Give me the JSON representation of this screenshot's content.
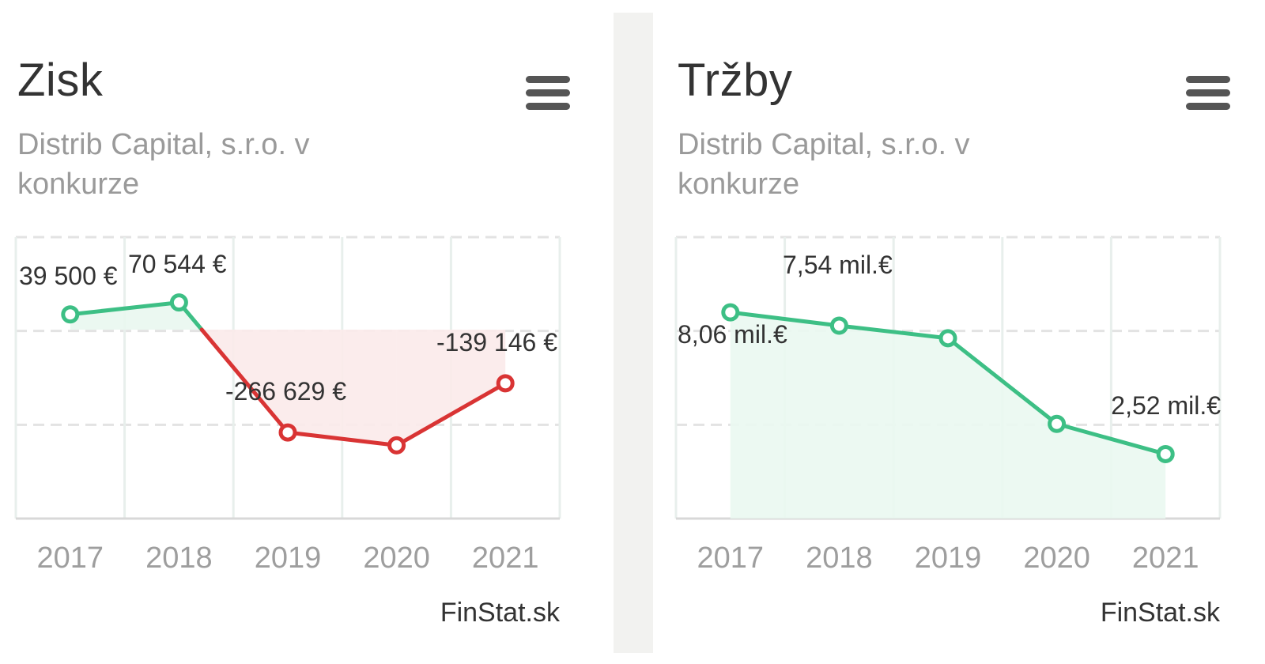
{
  "colors": {
    "positive": "#3dbf85",
    "negative": "#d93434",
    "grid": "#e3e3e3"
  },
  "charts": [
    {
      "title": "Zisk",
      "subtitle": "Distrib Capital, s.r.o. v konkurze",
      "menu_icon": "hamburger-menu-icon",
      "credit": "FinStat.sk"
    },
    {
      "title": "Tržby",
      "subtitle": "Distrib Capital, s.r.o. v konkurze",
      "menu_icon": "hamburger-menu-icon",
      "credit": "FinStat.sk"
    }
  ],
  "chart_data": [
    {
      "type": "area",
      "title": "Zisk",
      "subtitle": "Distrib Capital, s.r.o. v konkurze",
      "categories": [
        "2017",
        "2018",
        "2019",
        "2020",
        "2021"
      ],
      "series": [
        {
          "values": [
            39500,
            70544,
            -266629,
            -300000,
            -139146
          ],
          "data_labels": [
            "39 500 €",
            "70 544 €",
            "-266 629 €",
            "",
            "-139 146 €"
          ]
        }
      ],
      "ylim": [
        -490000,
        240000
      ],
      "grid": true,
      "threshold": 0
    },
    {
      "type": "area",
      "title": "Tržby",
      "subtitle": "Distrib Capital, s.r.o. v konkurze",
      "categories": [
        "2017",
        "2018",
        "2019",
        "2020",
        "2021"
      ],
      "series": [
        {
          "values": [
            8.06,
            7.54,
            7.05,
            3.7,
            2.52
          ],
          "data_labels": [
            "8,06 mil.€",
            "7,54 mil.€",
            "",
            "",
            "2,52 mil.€"
          ]
        }
      ],
      "ylim": [
        0,
        11
      ],
      "grid": true
    }
  ]
}
